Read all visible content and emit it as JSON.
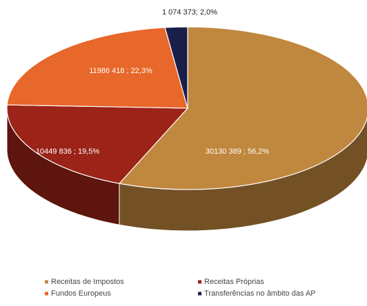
{
  "chart_data": {
    "type": "pie3d",
    "categories": [
      "Receitas de Impostos",
      "Receitas Próprias",
      "Fundos Europeus",
      "Transferências no âmbito das AP"
    ],
    "values": [
      30130389,
      10449836,
      11986418,
      1074373
    ],
    "value_labels": [
      "30130 389 ; 56,2%",
      "10449 836 ; 19,5%",
      "11986 418 ; 22,3%",
      "1 074 373; 2,0%"
    ],
    "colors": [
      "#c0873e",
      "#9b2318",
      "#e8672a",
      "#1a1f4a"
    ],
    "legend": "bottom"
  }
}
